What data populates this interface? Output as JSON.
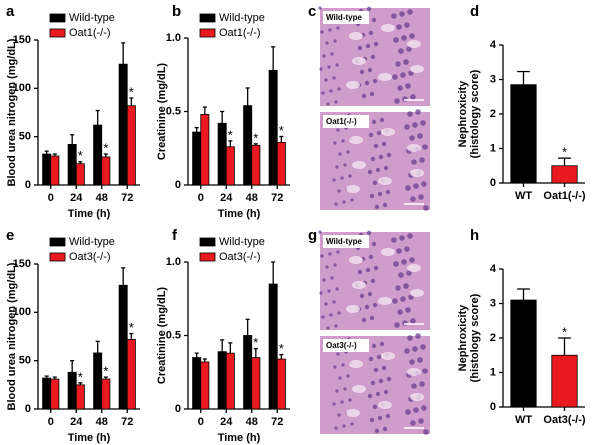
{
  "chart_data": [
    {
      "type": "bar",
      "panel": "a",
      "ylabel": [
        "Blood urea nitrogen (mg/dL)"
      ],
      "xlabel": "Time (h)",
      "categories": [
        "0",
        "24",
        "48",
        "72"
      ],
      "ylim": [
        0,
        150
      ],
      "yticks": [
        0,
        50,
        100,
        150
      ],
      "series": [
        {
          "name": "Wild-type",
          "color": "#000000",
          "values": [
            32,
            42,
            62,
            125
          ],
          "errors": [
            3,
            10,
            15,
            22
          ],
          "significance": [
            null,
            null,
            null,
            null
          ]
        },
        {
          "name": "Oat1(-/-)",
          "color": "#e8191f",
          "values": [
            30,
            22,
            29,
            82
          ],
          "errors": [
            2,
            2,
            3,
            8
          ],
          "significance": [
            null,
            "*",
            "*",
            "*"
          ]
        }
      ]
    },
    {
      "type": "bar",
      "panel": "b",
      "ylabel": [
        "Creatinine (mg/dL)"
      ],
      "xlabel": "Time (h)",
      "categories": [
        "0",
        "24",
        "48",
        "72"
      ],
      "ylim": [
        0,
        1
      ],
      "yticks": [
        0,
        0.5,
        {
          "value": 1,
          "label": "1.0"
        }
      ],
      "series": [
        {
          "name": "Wild-type",
          "color": "#000000",
          "values": [
            0.36,
            0.42,
            0.54,
            0.78
          ],
          "errors": [
            0.03,
            0.08,
            0.12,
            0.16
          ],
          "significance": [
            null,
            null,
            null,
            null
          ]
        },
        {
          "name": "Oat1(-/-)",
          "color": "#e8191f",
          "values": [
            0.48,
            0.26,
            0.27,
            0.29
          ],
          "errors": [
            0.05,
            0.04,
            0.01,
            0.04
          ],
          "significance": [
            null,
            "*",
            "*",
            "*"
          ]
        }
      ]
    },
    {
      "type": "image",
      "panel": "c",
      "labels": [
        "Wild-type",
        "Oat1(-/-)"
      ]
    },
    {
      "type": "bar",
      "panel": "d",
      "ylabel": [
        "Nephroxicity",
        "(histology score)"
      ],
      "categories": [
        "WT",
        "Oat1(-/-)"
      ],
      "ylim": [
        0,
        4
      ],
      "yticks": [
        0,
        1,
        2,
        3,
        4
      ],
      "values": [
        2.85,
        0.5
      ],
      "errors": [
        0.38,
        0.22
      ],
      "colors": [
        "#000000",
        "#e8191f"
      ],
      "significance": [
        null,
        "*"
      ]
    },
    {
      "type": "bar",
      "panel": "e",
      "ylabel": [
        "Blood urea nitrogen (mg/dL)"
      ],
      "xlabel": "Time (h)",
      "categories": [
        "0",
        "24",
        "48",
        "72"
      ],
      "ylim": [
        0,
        150
      ],
      "yticks": [
        0,
        50,
        100,
        150
      ],
      "series": [
        {
          "name": "Wild-type",
          "color": "#000000",
          "values": [
            32,
            38,
            58,
            128
          ],
          "errors": [
            2,
            12,
            12,
            18
          ],
          "significance": [
            null,
            null,
            null,
            null
          ]
        },
        {
          "name": "Oat3(-/-)",
          "color": "#e8191f",
          "values": [
            31,
            25,
            31,
            72
          ],
          "errors": [
            2,
            2,
            2,
            6
          ],
          "significance": [
            null,
            "*",
            "*",
            "*"
          ]
        }
      ]
    },
    {
      "type": "bar",
      "panel": "f",
      "ylabel": [
        "Creatinine (mg/dL)"
      ],
      "xlabel": "Time (h)",
      "categories": [
        "0",
        "24",
        "48",
        "72"
      ],
      "ylim": [
        0,
        1
      ],
      "yticks": [
        0,
        0.5,
        {
          "value": 1,
          "label": "1.0"
        }
      ],
      "series": [
        {
          "name": "Wild-type",
          "color": "#000000",
          "values": [
            0.35,
            0.39,
            0.5,
            0.85
          ],
          "errors": [
            0.03,
            0.08,
            0.11,
            0.15
          ],
          "significance": [
            null,
            null,
            null,
            null
          ]
        },
        {
          "name": "Oat3(-/-)",
          "color": "#e8191f",
          "values": [
            0.32,
            0.38,
            0.35,
            0.34
          ],
          "errors": [
            0.02,
            0.07,
            0.06,
            0.03
          ],
          "significance": [
            null,
            null,
            "*",
            "*"
          ]
        }
      ]
    },
    {
      "type": "image",
      "panel": "g",
      "labels": [
        "Wild-type",
        "Oat3(-/-)"
      ]
    },
    {
      "type": "bar",
      "panel": "h",
      "ylabel": [
        "Nephroxicity",
        "(histology score)"
      ],
      "categories": [
        "WT",
        "Oat3(-/-)"
      ],
      "ylim": [
        0,
        4
      ],
      "yticks": [
        0,
        1,
        2,
        3,
        4
      ],
      "values": [
        3.1,
        1.5
      ],
      "errors": [
        0.32,
        0.5
      ],
      "colors": [
        "#000000",
        "#e8191f"
      ],
      "significance": [
        null,
        "*"
      ]
    }
  ]
}
